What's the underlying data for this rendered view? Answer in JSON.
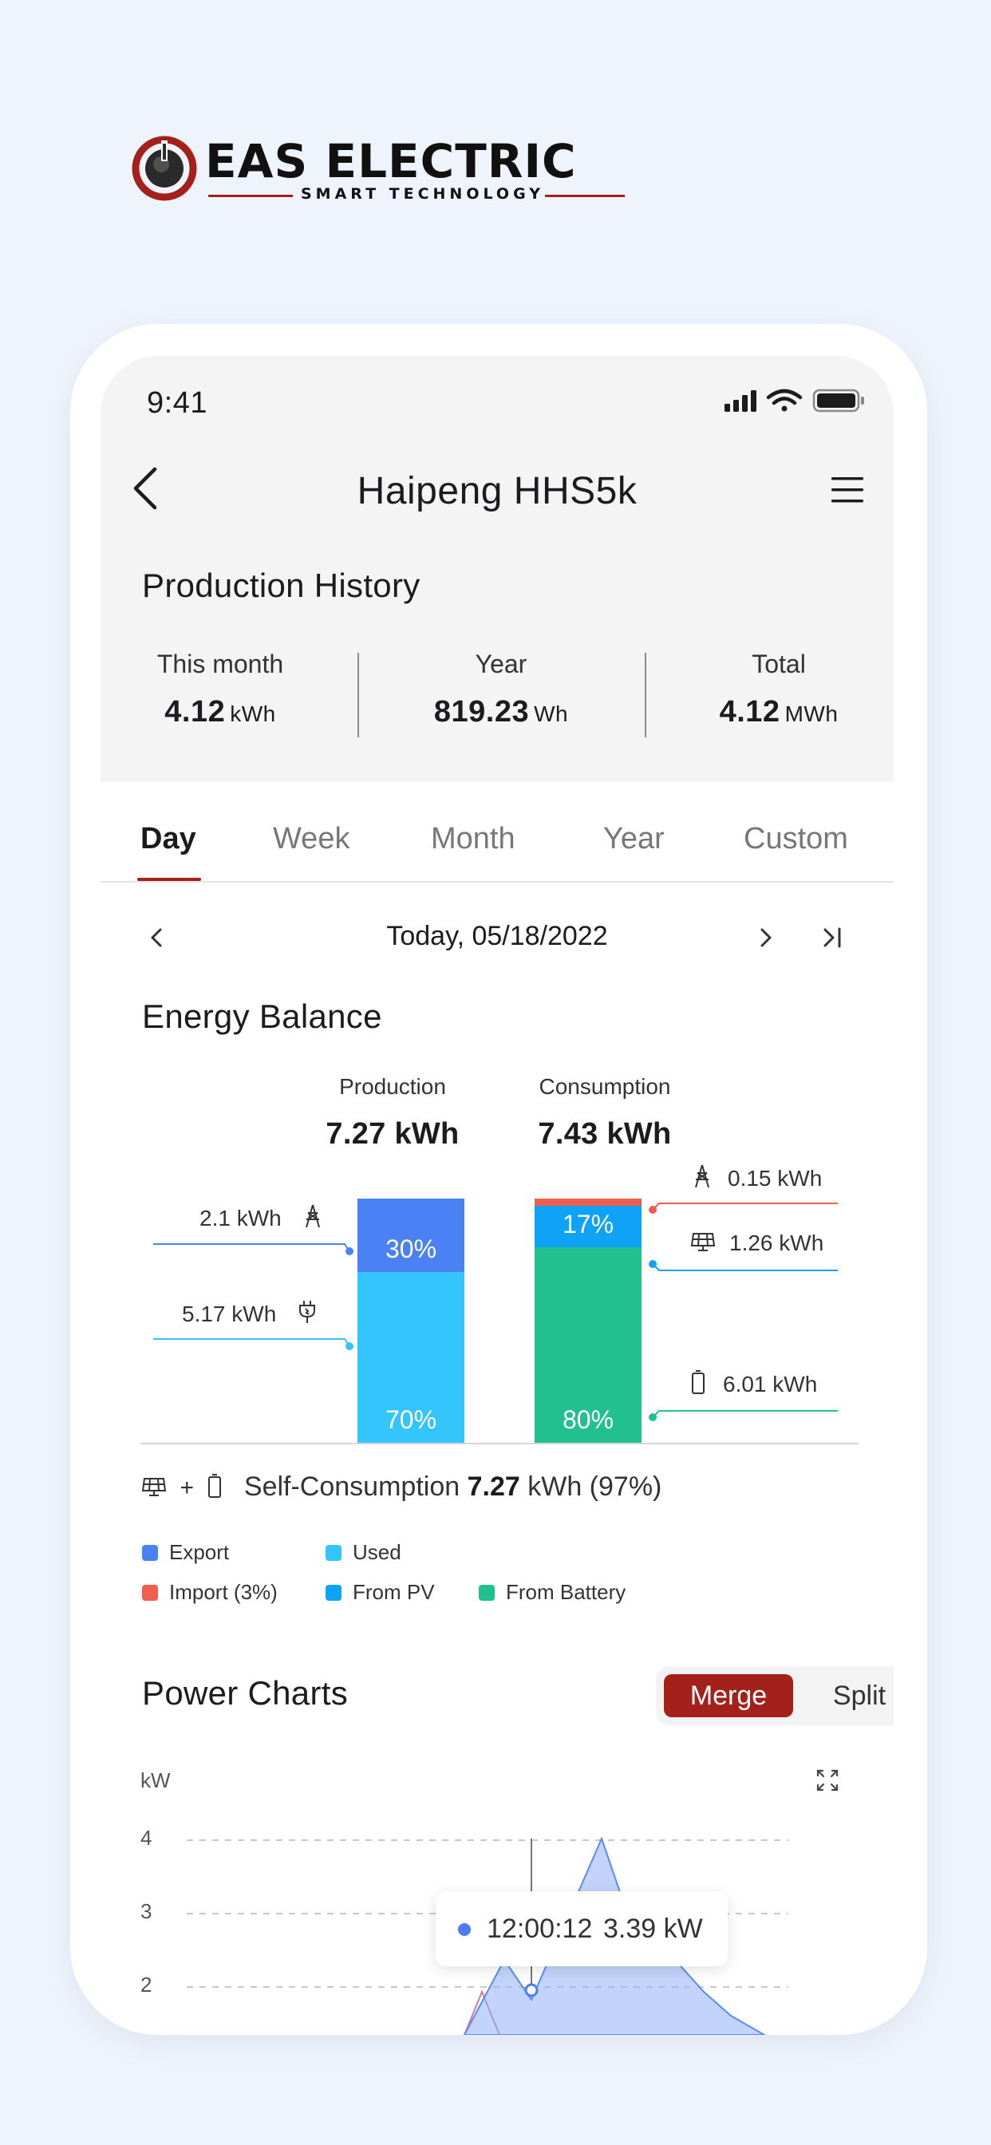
{
  "brand": {
    "name": "EAS ELECTRIC",
    "tagline": "SMART TECHNOLOGY",
    "primary_color": "#a3211a"
  },
  "status_bar": {
    "time": "9:41",
    "icons": [
      "signal-icon",
      "wifi-icon",
      "battery-icon"
    ]
  },
  "nav": {
    "title": "Haipeng HHS5k",
    "back_icon": "chevron-left-icon",
    "menu_icon": "hamburger-menu-icon"
  },
  "production_history": {
    "title": "Production History",
    "stats": [
      {
        "label": "This month",
        "value": "4.12",
        "unit": "kWh"
      },
      {
        "label": "Year",
        "value": "819.23",
        "unit": "Wh"
      },
      {
        "label": "Total",
        "value": "4.12",
        "unit": "MWh"
      }
    ]
  },
  "tabs": {
    "items": [
      "Day",
      "Week",
      "Month",
      "Year",
      "Custom"
    ],
    "active": "Day"
  },
  "date_nav": {
    "date": "Today, 05/18/2022"
  },
  "energy_balance": {
    "title": "Energy Balance",
    "production": {
      "label": "Production",
      "total": "7.27 kWh",
      "export_pct": "30%",
      "used_pct": "70%",
      "export_value": "2.1 kWh",
      "used_value": "5.17 kWh",
      "export_fraction": 0.3,
      "used_fraction": 0.7
    },
    "consumption": {
      "label": "Consumption",
      "total": "7.43 kWh",
      "pv_pct": "17%",
      "battery_pct": "80%",
      "import_value": "0.15 kWh",
      "pv_value": "1.26 kWh",
      "battery_value": "6.01 kWh",
      "import_fraction": 0.03,
      "pv_fraction": 0.17,
      "battery_fraction": 0.8
    },
    "self_consumption": {
      "plus": "+",
      "label": "Self-Consumption",
      "value": "7.27",
      "rest": "kWh (97%)"
    },
    "legend": {
      "export": "Export",
      "used": "Used",
      "import": "Import (3%)",
      "from_pv": "From PV",
      "from_battery": "From Battery"
    },
    "colors": {
      "export": "#4a82f5",
      "used": "#33c5fb",
      "import": "#ee5f50",
      "from_pv": "#0fa3f8",
      "from_battery": "#22c08f"
    }
  },
  "power_charts": {
    "title": "Power Charts",
    "toggle": {
      "merge": "Merge",
      "split": "Split",
      "active": "Merge"
    },
    "y_unit": "kW",
    "y_ticks": [
      "4",
      "3",
      "2"
    ],
    "tooltip": {
      "time": "12:00:12",
      "value": "3.39 kW"
    }
  }
}
